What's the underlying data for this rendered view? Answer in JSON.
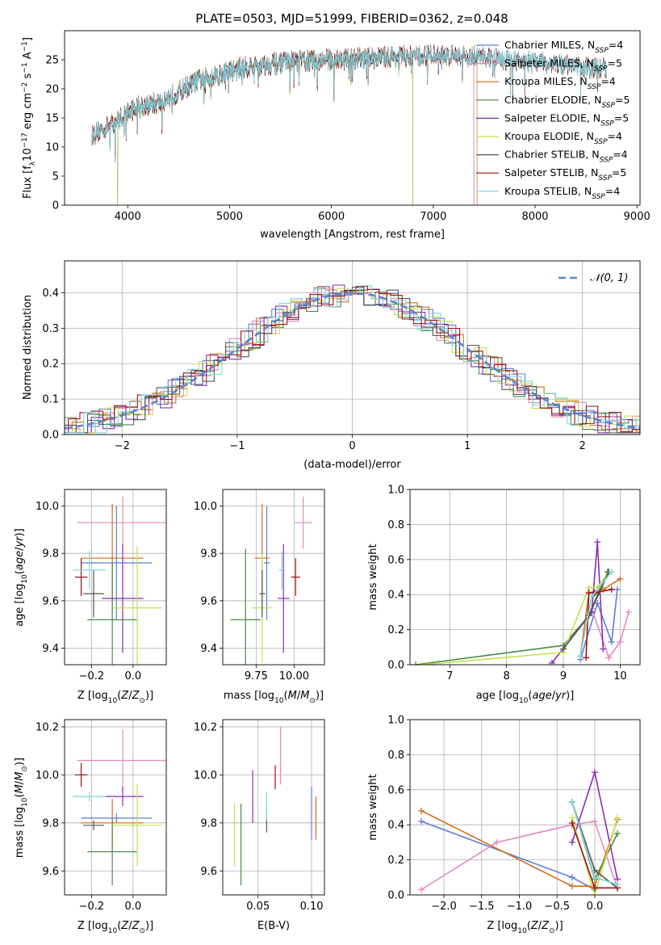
{
  "title": "PLATE=0503, MJD=51999, FIBERID=0362, z=0.048",
  "colors": {
    "Chabrier MILES": "#5b7fd6",
    "Salpeter MILES": "#e48ac3",
    "Kroupa MILES": "#d26f1a",
    "Chabrier ELODIE": "#4c8a4c",
    "Salpeter ELODIE": "#8a2fb0",
    "Kroupa ELODIE": "#c8e04a",
    "Chabrier STELIB": "#555555",
    "Salpeter STELIB": "#a01010",
    "Kroupa STELIB": "#7fd6e0"
  },
  "chart_data": [
    {
      "id": "spectrum",
      "type": "line",
      "xlabel": "wavelength [Angstrom, rest frame]",
      "ylabel": "Flux [f_λ 10^-17 erg cm^-2 s^-1 A^-1]",
      "xlim": [
        3380,
        9030
      ],
      "ylim": [
        0,
        30
      ],
      "xticks": [
        4000,
        5000,
        6000,
        7000,
        8000,
        9000
      ],
      "yticks": [
        0,
        5,
        10,
        15,
        20,
        25
      ],
      "grid": false,
      "legend_position": "right",
      "legend": [
        {
          "name": "Chabrier MILES",
          "label": "Chabrier MILES, N",
          "sub": "SSP",
          "tail": "=4"
        },
        {
          "name": "Salpeter MILES",
          "label": "Salpeter MILES, N",
          "sub": "SSP",
          "tail": "=5"
        },
        {
          "name": "Kroupa MILES",
          "label": "Kroupa MILES, N",
          "sub": "SSP",
          "tail": "=4"
        },
        {
          "name": "Chabrier ELODIE",
          "label": "Chabrier ELODIE, N",
          "sub": "SSP",
          "tail": "=5"
        },
        {
          "name": "Salpeter ELODIE",
          "label": "Salpeter ELODIE, N",
          "sub": "SSP",
          "tail": "=5"
        },
        {
          "name": "Kroupa ELODIE",
          "label": "Kroupa ELODIE, N",
          "sub": "SSP",
          "tail": "=4"
        },
        {
          "name": "Chabrier STELIB",
          "label": "Chabrier STELIB, N",
          "sub": "SSP",
          "tail": "=4"
        },
        {
          "name": "Salpeter STELIB",
          "label": "Salpeter STELIB, N",
          "sub": "SSP",
          "tail": "=5"
        },
        {
          "name": "Kroupa STELIB",
          "label": "Kroupa STELIB, N",
          "sub": "SSP",
          "tail": "=4"
        }
      ],
      "continuum": [
        [
          3650,
          12
        ],
        [
          3750,
          13
        ],
        [
          3900,
          14.5
        ],
        [
          4000,
          16
        ],
        [
          4100,
          17
        ],
        [
          4300,
          17.5
        ],
        [
          4500,
          19.5
        ],
        [
          4700,
          21.5
        ],
        [
          4900,
          22.5
        ],
        [
          5100,
          23.5
        ],
        [
          5300,
          24
        ],
        [
          5500,
          24.5
        ],
        [
          5700,
          24.8
        ],
        [
          6000,
          25
        ],
        [
          6300,
          25.2
        ],
        [
          6500,
          25.5
        ],
        [
          6700,
          25.5
        ],
        [
          7000,
          25.8
        ],
        [
          7400,
          25.5
        ],
        [
          7800,
          24.8
        ],
        [
          8200,
          24.3
        ],
        [
          8600,
          23.5
        ],
        [
          8700,
          23.3
        ]
      ],
      "series_ranges": [
        {
          "name": "Chabrier MILES",
          "x": [
            3650,
            7400
          ]
        },
        {
          "name": "Salpeter MILES",
          "x": [
            3650,
            7400
          ]
        },
        {
          "name": "Kroupa MILES",
          "x": [
            3650,
            7430
          ]
        },
        {
          "name": "Chabrier ELODIE",
          "x": [
            3900,
            6800
          ]
        },
        {
          "name": "Salpeter ELODIE",
          "x": [
            3900,
            6800
          ]
        },
        {
          "name": "Kroupa ELODIE",
          "x": [
            3900,
            6800
          ]
        },
        {
          "name": "Chabrier STELIB",
          "x": [
            3650,
            8700
          ]
        },
        {
          "name": "Salpeter STELIB",
          "x": [
            3650,
            8700
          ]
        },
        {
          "name": "Kroupa STELIB",
          "x": [
            3650,
            8700
          ]
        }
      ]
    },
    {
      "id": "residuals",
      "type": "histogram",
      "xlabel": "(data-model)/error",
      "ylabel": "Normed distribution",
      "xlim": [
        -2.5,
        2.5
      ],
      "ylim": [
        0,
        0.49
      ],
      "xticks": [
        -2,
        -1,
        0,
        1,
        2
      ],
      "yticks": [
        0.0,
        0.1,
        0.2,
        0.3,
        0.4
      ],
      "grid": true,
      "legend_position": "top-right",
      "reference": {
        "label": "𝒩(0, 1)",
        "mean": 0,
        "sigma": 1
      },
      "bin_width": 0.1
    },
    {
      "id": "age-vs-Z",
      "type": "errorbar",
      "xlabel": "Z [log10(Z/Z☉)]",
      "ylabel": "age [log10(age/yr)]",
      "xlim": [
        -0.33,
        0.16
      ],
      "ylim": [
        9.33,
        10.07
      ],
      "xticks": [
        -0.2,
        0.0
      ],
      "yticks": [
        9.4,
        9.6,
        9.8,
        10.0
      ],
      "grid": true,
      "points": [
        {
          "series": "Chabrier MILES",
          "x": -0.08,
          "xerr": 0.17,
          "y": 9.76,
          "yerr": 0.24
        },
        {
          "series": "Salpeter MILES",
          "x": -0.05,
          "xerr": 0.22,
          "y": 9.93,
          "yerr": 0.11
        },
        {
          "series": "Kroupa MILES",
          "x": -0.1,
          "xerr": 0.15,
          "y": 9.78,
          "yerr": 0.23
        },
        {
          "series": "Chabrier ELODIE",
          "x": -0.1,
          "xerr": 0.12,
          "y": 9.52,
          "yerr": 0.24
        },
        {
          "series": "Salpeter ELODIE",
          "x": -0.05,
          "xerr": 0.1,
          "y": 9.61,
          "yerr": 0.23
        },
        {
          "series": "Kroupa ELODIE",
          "x": 0.02,
          "xerr": 0.12,
          "y": 9.57,
          "yerr": 0.26
        },
        {
          "series": "Chabrier STELIB",
          "x": -0.19,
          "xerr": 0.05,
          "y": 9.63,
          "yerr": 0.1
        },
        {
          "series": "Salpeter STELIB",
          "x": -0.25,
          "xerr": 0.03,
          "y": 9.7,
          "yerr": 0.08
        },
        {
          "series": "Kroupa STELIB",
          "x": -0.21,
          "xerr": 0.08,
          "y": 9.73,
          "yerr": 0.08
        }
      ]
    },
    {
      "id": "age-vs-mass",
      "type": "errorbar",
      "xlabel": "mass [log10(M/M☉)]",
      "ylabel": "",
      "xlim": [
        9.53,
        10.2
      ],
      "ylim": [
        9.33,
        10.07
      ],
      "xticks": [
        9.75,
        10.0
      ],
      "yticks": [
        9.4,
        9.6,
        9.8,
        10.0
      ],
      "grid": true,
      "points": [
        {
          "series": "Chabrier MILES",
          "x": 9.82,
          "xerr": 0.02,
          "y": 9.76,
          "yerr": 0.24
        },
        {
          "series": "Salpeter MILES",
          "x": 10.06,
          "xerr": 0.06,
          "y": 9.93,
          "yerr": 0.11
        },
        {
          "series": "Kroupa MILES",
          "x": 9.79,
          "xerr": 0.05,
          "y": 9.78,
          "yerr": 0.23
        },
        {
          "series": "Chabrier ELODIE",
          "x": 9.68,
          "xerr": 0.1,
          "y": 9.52,
          "yerr": 0.3
        },
        {
          "series": "Salpeter ELODIE",
          "x": 9.93,
          "xerr": 0.04,
          "y": 9.61,
          "yerr": 0.23
        },
        {
          "series": "Kroupa ELODIE",
          "x": 9.79,
          "xerr": 0.07,
          "y": 9.57,
          "yerr": 0.23
        },
        {
          "series": "Chabrier STELIB",
          "x": 9.79,
          "xerr": 0.02,
          "y": 9.63,
          "yerr": 0.1
        },
        {
          "series": "Salpeter STELIB",
          "x": 10.01,
          "xerr": 0.03,
          "y": 9.7,
          "yerr": 0.08
        },
        {
          "series": "Kroupa STELIB",
          "x": 9.92,
          "xerr": 0.02,
          "y": 9.73,
          "yerr": 0.08
        }
      ]
    },
    {
      "id": "mass-vs-Z",
      "type": "errorbar",
      "xlabel": "Z [log10(Z/Z☉)]",
      "ylabel": "mass [log10(M/M☉)]",
      "xlim": [
        -0.33,
        0.16
      ],
      "ylim": [
        9.5,
        10.23
      ],
      "xticks": [
        -0.2,
        0.0
      ],
      "yticks": [
        9.6,
        9.8,
        10.0,
        10.2
      ],
      "grid": true,
      "points": [
        {
          "series": "Chabrier MILES",
          "x": -0.08,
          "xerr": 0.17,
          "y": 9.82,
          "yerr": 0.02
        },
        {
          "series": "Salpeter MILES",
          "x": -0.05,
          "xerr": 0.22,
          "y": 10.06,
          "yerr": 0.13
        },
        {
          "series": "Kroupa MILES",
          "x": -0.1,
          "xerr": 0.15,
          "y": 9.8,
          "yerr": 0.1
        },
        {
          "series": "Chabrier ELODIE",
          "x": -0.1,
          "xerr": 0.12,
          "y": 9.68,
          "yerr": 0.14
        },
        {
          "series": "Salpeter ELODIE",
          "x": -0.05,
          "xerr": 0.1,
          "y": 9.91,
          "yerr": 0.04
        },
        {
          "series": "Kroupa ELODIE",
          "x": 0.02,
          "xerr": 0.12,
          "y": 9.79,
          "yerr": 0.17
        },
        {
          "series": "Chabrier STELIB",
          "x": -0.19,
          "xerr": 0.05,
          "y": 9.79,
          "yerr": 0.02
        },
        {
          "series": "Salpeter STELIB",
          "x": -0.25,
          "xerr": 0.03,
          "y": 10.0,
          "yerr": 0.05
        },
        {
          "series": "Kroupa STELIB",
          "x": -0.21,
          "xerr": 0.08,
          "y": 9.91,
          "yerr": 0.02
        }
      ]
    },
    {
      "id": "mass-vs-EBV",
      "type": "errorbar",
      "xlabel": "E(B-V)",
      "ylabel": "",
      "xlim": [
        0.017,
        0.112
      ],
      "ylim": [
        9.5,
        10.23
      ],
      "xticks": [
        0.05,
        0.1
      ],
      "yticks": [
        9.6,
        9.8,
        10.0,
        10.2
      ],
      "grid": true,
      "points": [
        {
          "series": "Chabrier MILES",
          "x": 0.1,
          "y": 9.84,
          "yerr": 0.11
        },
        {
          "series": "Salpeter MILES",
          "x": 0.071,
          "y": 10.08,
          "yerr": 0.12
        },
        {
          "series": "Kroupa MILES",
          "x": 0.104,
          "y": 9.82,
          "yerr": 0.09
        },
        {
          "series": "Chabrier ELODIE",
          "x": 0.034,
          "y": 9.71,
          "yerr": 0.17
        },
        {
          "series": "Salpeter ELODIE",
          "x": 0.045,
          "y": 9.91,
          "yerr": 0.11
        },
        {
          "series": "Kroupa ELODIE",
          "x": 0.028,
          "y": 9.75,
          "yerr": 0.13
        },
        {
          "series": "Chabrier STELIB",
          "x": 0.058,
          "y": 9.81,
          "yerr": 0.05
        },
        {
          "series": "Salpeter STELIB",
          "x": 0.066,
          "y": 9.99,
          "yerr": 0.05
        },
        {
          "series": "Kroupa STELIB",
          "x": 0.058,
          "y": 9.87,
          "yerr": 0.06
        }
      ]
    },
    {
      "id": "weight-vs-age",
      "type": "line",
      "xlabel": "age [log10(age/yr)]",
      "ylabel": "mass weight",
      "xlim": [
        6.3,
        10.35
      ],
      "ylim": [
        0,
        1
      ],
      "xticks": [
        7,
        8,
        9,
        10
      ],
      "yticks": [
        0.0,
        0.2,
        0.4,
        0.6,
        0.8,
        1.0
      ],
      "grid": true,
      "series": [
        {
          "name": "Chabrier MILES",
          "x": [
            9.3,
            9.6,
            9.85,
            9.95
          ],
          "y": [
            0.03,
            0.35,
            0.13,
            0.43
          ]
        },
        {
          "name": "Salpeter MILES",
          "x": [
            9.5,
            9.8,
            10.0,
            10.15
          ],
          "y": [
            0.32,
            0.04,
            0.13,
            0.3
          ]
        },
        {
          "name": "Kroupa MILES",
          "x": [
            9.3,
            9.45,
            9.7,
            10.0
          ],
          "y": [
            0.05,
            0.41,
            0.43,
            0.49
          ]
        },
        {
          "name": "Chabrier ELODIE",
          "x": [
            6.4,
            9.0,
            9.45,
            9.6,
            9.78
          ],
          "y": [
            0.0,
            0.11,
            0.28,
            0.4,
            0.53
          ]
        },
        {
          "name": "Salpeter ELODIE",
          "x": [
            8.8,
            9.5,
            9.6,
            9.7
          ],
          "y": [
            0.01,
            0.3,
            0.7,
            0.09
          ]
        },
        {
          "name": "Kroupa ELODIE",
          "x": [
            6.5,
            9.0,
            9.45,
            9.6,
            9.8
          ],
          "y": [
            0.0,
            0.07,
            0.44,
            0.44,
            0.53
          ]
        },
        {
          "name": "Chabrier STELIB",
          "x": [
            9.0,
            9.45,
            9.8
          ],
          "y": [
            0.09,
            0.28,
            0.53
          ]
        },
        {
          "name": "Salpeter STELIB",
          "x": [
            9.4,
            9.45,
            9.55,
            9.85
          ],
          "y": [
            0.04,
            0.41,
            0.41,
            0.43
          ]
        },
        {
          "name": "Kroupa STELIB",
          "x": [
            9.3,
            9.5,
            9.85
          ],
          "y": [
            0.05,
            0.39,
            0.53
          ]
        }
      ]
    },
    {
      "id": "weight-vs-Z",
      "type": "line",
      "xlabel": "Z [log10(Z/Z☉)]",
      "ylabel": "mass weight",
      "xlim": [
        -2.45,
        0.6
      ],
      "ylim": [
        0,
        1
      ],
      "xticks": [
        -2.0,
        -1.5,
        -1.0,
        -0.5,
        0.0
      ],
      "yticks": [
        0.0,
        0.2,
        0.4,
        0.6,
        0.8,
        1.0
      ],
      "grid": true,
      "series": [
        {
          "name": "Chabrier MILES",
          "x": [
            -2.3,
            -0.3,
            0.0
          ],
          "y": [
            0.42,
            0.1,
            0.03
          ]
        },
        {
          "name": "Salpeter MILES",
          "x": [
            -2.3,
            -1.3,
            -0.3,
            0.0,
            0.3
          ],
          "y": [
            0.03,
            0.3,
            0.4,
            0.42,
            0.04
          ]
        },
        {
          "name": "Kroupa MILES",
          "x": [
            -2.3,
            -0.3,
            0.0,
            0.3
          ],
          "y": [
            0.48,
            0.05,
            0.05,
            0.43
          ]
        },
        {
          "name": "Chabrier ELODIE",
          "x": [
            -0.3,
            0.0,
            0.3
          ],
          "y": [
            0.53,
            0.09,
            0.35
          ]
        },
        {
          "name": "Salpeter ELODIE",
          "x": [
            -0.3,
            0.0,
            0.3
          ],
          "y": [
            0.3,
            0.7,
            0.09
          ]
        },
        {
          "name": "Kroupa ELODIE",
          "x": [
            -0.3,
            0.0,
            0.3
          ],
          "y": [
            0.44,
            0.0,
            0.44
          ]
        },
        {
          "name": "Chabrier STELIB",
          "x": [
            -0.3,
            0.0,
            0.3
          ],
          "y": [
            0.53,
            0.14,
            0.04
          ]
        },
        {
          "name": "Salpeter STELIB",
          "x": [
            -0.3,
            0.0,
            0.3
          ],
          "y": [
            0.41,
            0.04,
            0.04
          ]
        },
        {
          "name": "Kroupa STELIB",
          "x": [
            -0.3,
            0.0,
            0.3
          ],
          "y": [
            0.53,
            0.1,
            0.06
          ]
        }
      ]
    }
  ]
}
